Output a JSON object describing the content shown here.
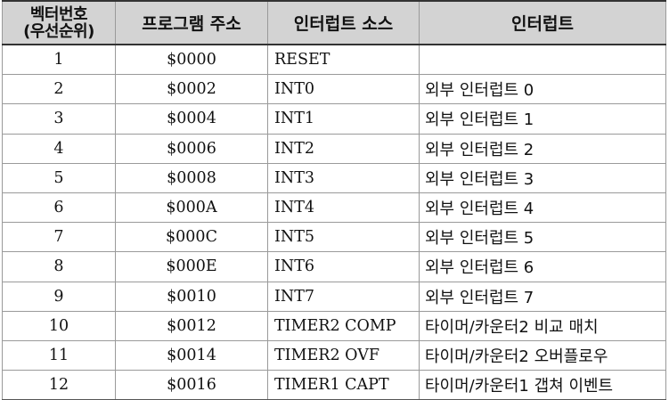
{
  "table": {
    "headers": {
      "vector_line1": "벡터번호",
      "vector_line2": "(우선순위)",
      "address": "프로그램 주소",
      "source": "인터럽트 소스",
      "interrupt": "인터럽트"
    },
    "rows": [
      {
        "num": "1",
        "addr": "$0000",
        "src": "RESET",
        "desc": ""
      },
      {
        "num": "2",
        "addr": "$0002",
        "src": "INT0",
        "desc": "외부 인터럽트 0"
      },
      {
        "num": "3",
        "addr": "$0004",
        "src": "INT1",
        "desc": "외부 인터럽트 1"
      },
      {
        "num": "4",
        "addr": "$0006",
        "src": "INT2",
        "desc": "외부 인터럽트 2"
      },
      {
        "num": "5",
        "addr": "$0008",
        "src": "INT3",
        "desc": "외부 인터럽트 3"
      },
      {
        "num": "6",
        "addr": "$000A",
        "src": "INT4",
        "desc": "외부 인터럽트 4"
      },
      {
        "num": "7",
        "addr": "$000C",
        "src": "INT5",
        "desc": "외부 인터럽트 5"
      },
      {
        "num": "8",
        "addr": "$000E",
        "src": "INT6",
        "desc": "외부 인터럽트 6"
      },
      {
        "num": "9",
        "addr": "$0010",
        "src": "INT7",
        "desc": "외부 인터럽트 7"
      },
      {
        "num": "10",
        "addr": "$0012",
        "src": "TIMER2 COMP",
        "desc": "타이머/카운터2 비교 매치"
      },
      {
        "num": "11",
        "addr": "$0014",
        "src": "TIMER2 OVF",
        "desc": "타이머/카운터2 오버플로우"
      },
      {
        "num": "12",
        "addr": "$0016",
        "src": "TIMER1 CAPT",
        "desc": "타이머/카운터1 갭쳐 이벤트"
      }
    ]
  },
  "colors": {
    "header_bg": "#d3d3d3",
    "grid_line": "#9a9a9a",
    "rule": "#333333"
  }
}
